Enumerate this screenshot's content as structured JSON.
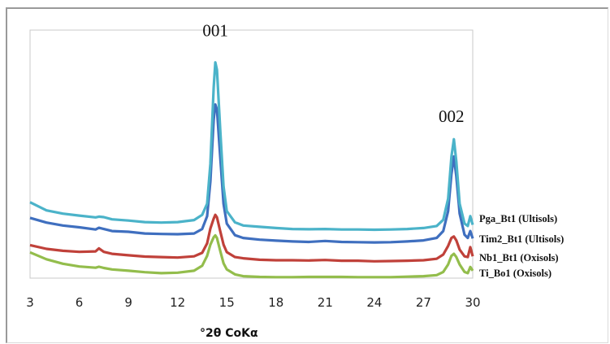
{
  "chart_data": {
    "type": "line",
    "xlabel": "°2θ CoKα",
    "ylabel": "",
    "xlim": [
      3,
      30
    ],
    "ylim": [
      0,
      10
    ],
    "x_ticks": [
      "3",
      "6",
      "9",
      "12",
      "15",
      "18",
      "21",
      "24",
      "27",
      "30"
    ],
    "grid": false,
    "legend_placement": "right",
    "annotations": [
      {
        "text": "001",
        "x": 14.3,
        "y": 9.75
      },
      {
        "text": "002",
        "x": 28.7,
        "y": 6.3
      }
    ],
    "series": [
      {
        "name": "Pga_Bt1 (Ultisols)",
        "color": "#4bb3c9",
        "points": [
          [
            3,
            3.06
          ],
          [
            4,
            2.73
          ],
          [
            5,
            2.6
          ],
          [
            6,
            2.52
          ],
          [
            7,
            2.45
          ],
          [
            7.2,
            2.48
          ],
          [
            7.5,
            2.46
          ],
          [
            8,
            2.37
          ],
          [
            9,
            2.32
          ],
          [
            10,
            2.26
          ],
          [
            11,
            2.24
          ],
          [
            12,
            2.26
          ],
          [
            13,
            2.34
          ],
          [
            13.5,
            2.55
          ],
          [
            13.8,
            3.0
          ],
          [
            14.0,
            4.6
          ],
          [
            14.2,
            7.7
          ],
          [
            14.3,
            8.7
          ],
          [
            14.4,
            8.4
          ],
          [
            14.6,
            6.0
          ],
          [
            14.8,
            3.7
          ],
          [
            15,
            2.7
          ],
          [
            15.5,
            2.25
          ],
          [
            16,
            2.12
          ],
          [
            17,
            2.07
          ],
          [
            18,
            2.02
          ],
          [
            19,
            1.98
          ],
          [
            20,
            1.97
          ],
          [
            21,
            1.98
          ],
          [
            22,
            1.96
          ],
          [
            23,
            1.96
          ],
          [
            24,
            1.95
          ],
          [
            25,
            1.96
          ],
          [
            26,
            1.98
          ],
          [
            27,
            2.02
          ],
          [
            27.8,
            2.1
          ],
          [
            28.2,
            2.35
          ],
          [
            28.5,
            3.2
          ],
          [
            28.7,
            4.9
          ],
          [
            28.85,
            5.6
          ],
          [
            29.0,
            4.7
          ],
          [
            29.2,
            3.0
          ],
          [
            29.5,
            2.2
          ],
          [
            29.7,
            2.1
          ],
          [
            29.85,
            2.5
          ],
          [
            30,
            2.15
          ]
        ]
      },
      {
        "name": "Tim2_Bt1 (Ultisols)",
        "color": "#3f6fbf",
        "points": [
          [
            3,
            2.43
          ],
          [
            4,
            2.24
          ],
          [
            5,
            2.12
          ],
          [
            6,
            2.05
          ],
          [
            7,
            1.96
          ],
          [
            7.2,
            2.03
          ],
          [
            7.5,
            1.98
          ],
          [
            8,
            1.9
          ],
          [
            9,
            1.87
          ],
          [
            10,
            1.8
          ],
          [
            11,
            1.78
          ],
          [
            12,
            1.77
          ],
          [
            13,
            1.8
          ],
          [
            13.5,
            1.98
          ],
          [
            13.8,
            2.5
          ],
          [
            14.0,
            3.9
          ],
          [
            14.2,
            6.4
          ],
          [
            14.3,
            7.0
          ],
          [
            14.4,
            6.8
          ],
          [
            14.6,
            4.9
          ],
          [
            14.8,
            3.0
          ],
          [
            15,
            2.2
          ],
          [
            15.5,
            1.73
          ],
          [
            16,
            1.62
          ],
          [
            17,
            1.55
          ],
          [
            18,
            1.51
          ],
          [
            19,
            1.48
          ],
          [
            20,
            1.46
          ],
          [
            21,
            1.5
          ],
          [
            22,
            1.46
          ],
          [
            23,
            1.45
          ],
          [
            24,
            1.44
          ],
          [
            25,
            1.45
          ],
          [
            26,
            1.48
          ],
          [
            27,
            1.52
          ],
          [
            27.8,
            1.62
          ],
          [
            28.2,
            1.9
          ],
          [
            28.5,
            2.7
          ],
          [
            28.7,
            4.2
          ],
          [
            28.85,
            4.9
          ],
          [
            29.0,
            4.1
          ],
          [
            29.2,
            2.6
          ],
          [
            29.5,
            1.75
          ],
          [
            29.7,
            1.62
          ],
          [
            29.85,
            1.9
          ],
          [
            30,
            1.6
          ]
        ]
      },
      {
        "name": "Nb1_Bt1 (Oxisols)",
        "color": "#c0413a",
        "points": [
          [
            3,
            1.33
          ],
          [
            4,
            1.18
          ],
          [
            5,
            1.1
          ],
          [
            6,
            1.06
          ],
          [
            7,
            1.08
          ],
          [
            7.2,
            1.2
          ],
          [
            7.5,
            1.06
          ],
          [
            8,
            0.98
          ],
          [
            9,
            0.92
          ],
          [
            10,
            0.87
          ],
          [
            11,
            0.85
          ],
          [
            12,
            0.83
          ],
          [
            13,
            0.88
          ],
          [
            13.5,
            1.02
          ],
          [
            13.8,
            1.4
          ],
          [
            14.0,
            2.0
          ],
          [
            14.2,
            2.4
          ],
          [
            14.3,
            2.55
          ],
          [
            14.4,
            2.45
          ],
          [
            14.6,
            1.9
          ],
          [
            14.8,
            1.35
          ],
          [
            15,
            1.05
          ],
          [
            15.5,
            0.85
          ],
          [
            16,
            0.8
          ],
          [
            17,
            0.74
          ],
          [
            18,
            0.72
          ],
          [
            19,
            0.72
          ],
          [
            20,
            0.71
          ],
          [
            21,
            0.73
          ],
          [
            22,
            0.7
          ],
          [
            23,
            0.7
          ],
          [
            24,
            0.68
          ],
          [
            25,
            0.69
          ],
          [
            26,
            0.7
          ],
          [
            27,
            0.72
          ],
          [
            27.8,
            0.78
          ],
          [
            28.2,
            0.95
          ],
          [
            28.5,
            1.3
          ],
          [
            28.7,
            1.62
          ],
          [
            28.85,
            1.68
          ],
          [
            29.0,
            1.52
          ],
          [
            29.2,
            1.15
          ],
          [
            29.5,
            0.88
          ],
          [
            29.7,
            0.85
          ],
          [
            29.85,
            1.25
          ],
          [
            30,
            0.88
          ]
        ]
      },
      {
        "name": "Ti_Bo1 (Oxisols)",
        "color": "#93bd4c",
        "points": [
          [
            3,
            1.04
          ],
          [
            4,
            0.76
          ],
          [
            5,
            0.58
          ],
          [
            6,
            0.47
          ],
          [
            7,
            0.42
          ],
          [
            7.2,
            0.46
          ],
          [
            7.5,
            0.41
          ],
          [
            8,
            0.35
          ],
          [
            9,
            0.3
          ],
          [
            10,
            0.24
          ],
          [
            11,
            0.2
          ],
          [
            12,
            0.22
          ],
          [
            13,
            0.3
          ],
          [
            13.5,
            0.5
          ],
          [
            13.8,
            0.9
          ],
          [
            14.0,
            1.35
          ],
          [
            14.2,
            1.65
          ],
          [
            14.3,
            1.72
          ],
          [
            14.4,
            1.62
          ],
          [
            14.6,
            1.1
          ],
          [
            14.8,
            0.6
          ],
          [
            15,
            0.35
          ],
          [
            15.5,
            0.15
          ],
          [
            16,
            0.08
          ],
          [
            17,
            0.05
          ],
          [
            18,
            0.04
          ],
          [
            19,
            0.04
          ],
          [
            20,
            0.05
          ],
          [
            21,
            0.05
          ],
          [
            22,
            0.05
          ],
          [
            23,
            0.04
          ],
          [
            24,
            0.04
          ],
          [
            25,
            0.04
          ],
          [
            26,
            0.06
          ],
          [
            27,
            0.08
          ],
          [
            27.8,
            0.12
          ],
          [
            28.2,
            0.25
          ],
          [
            28.5,
            0.55
          ],
          [
            28.7,
            0.9
          ],
          [
            28.85,
            0.98
          ],
          [
            29.0,
            0.85
          ],
          [
            29.2,
            0.55
          ],
          [
            29.5,
            0.25
          ],
          [
            29.7,
            0.2
          ],
          [
            29.85,
            0.45
          ],
          [
            30,
            0.3
          ]
        ]
      }
    ]
  }
}
